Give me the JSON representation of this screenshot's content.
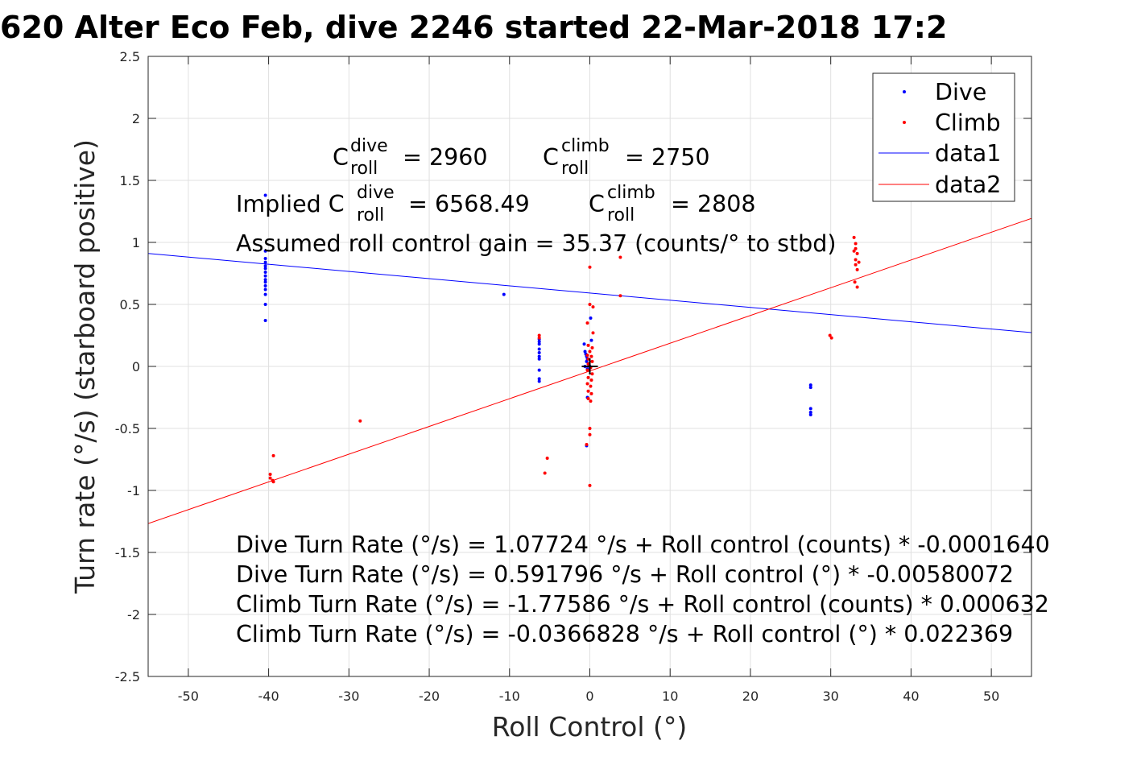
{
  "chart_data": {
    "type": "scatter",
    "title": "620 Alter Eco Feb, dive 2246 started 22-Mar-2018 17:2",
    "xlabel": "Roll Control (°)",
    "ylabel": "Turn rate (°/s) (starboard positive)",
    "xlim": [
      -55,
      55
    ],
    "ylim": [
      -2.5,
      2.5
    ],
    "xticks": [
      -50,
      -40,
      -30,
      -20,
      -10,
      0,
      10,
      20,
      30,
      40,
      50
    ],
    "xtick_labels": [
      "-50",
      "-40",
      "-30",
      "-20",
      "-10",
      "0",
      "10",
      "20",
      "30",
      "40",
      "50"
    ],
    "yticks": [
      -2.5,
      -2,
      -1.5,
      -1,
      -0.5,
      0,
      0.5,
      1,
      1.5,
      2,
      2.5
    ],
    "ytick_labels": [
      "-2.5",
      "-2",
      "-1.5",
      "-1",
      "-0.5",
      "0",
      "0.5",
      "1",
      "1.5",
      "2",
      "2.5"
    ],
    "grid": true,
    "legend_position": "top-right",
    "legend": [
      "Dive",
      "Climb",
      "data1",
      "data2"
    ],
    "colors": {
      "dive": "#0000ff",
      "climb": "#ff0000",
      "axis": "#262626",
      "grid": "#e0e0e0"
    },
    "series": [
      {
        "name": "Dive",
        "kind": "points",
        "points": [
          [
            -40.4,
            1.38
          ],
          [
            -40.4,
            0.93
          ],
          [
            -40.4,
            0.87
          ],
          [
            -40.4,
            0.84
          ],
          [
            -40.4,
            0.81
          ],
          [
            -40.4,
            0.79
          ],
          [
            -40.4,
            0.76
          ],
          [
            -40.4,
            0.73
          ],
          [
            -40.4,
            0.7
          ],
          [
            -40.4,
            0.68
          ],
          [
            -40.4,
            0.65
          ],
          [
            -40.4,
            0.62
          ],
          [
            -40.4,
            0.58
          ],
          [
            -40.4,
            0.5
          ],
          [
            -40.4,
            0.37
          ],
          [
            -10.7,
            0.58
          ],
          [
            -6.3,
            0.22
          ],
          [
            -6.3,
            0.2
          ],
          [
            -6.3,
            0.18
          ],
          [
            -6.3,
            0.14
          ],
          [
            -6.3,
            0.11
          ],
          [
            -6.3,
            0.08
          ],
          [
            -6.3,
            0.06
          ],
          [
            -6.3,
            -0.03
          ],
          [
            -6.3,
            -0.1
          ],
          [
            -6.3,
            -0.12
          ],
          [
            -0.7,
            0.18
          ],
          [
            -0.6,
            0.12
          ],
          [
            -0.5,
            0.1
          ],
          [
            -0.4,
            0.08
          ],
          [
            -0.3,
            0.06
          ],
          [
            -0.4,
            0.04
          ],
          [
            -0.2,
            0.02
          ],
          [
            -0.6,
            0.0
          ],
          [
            -0.3,
            -0.02
          ],
          [
            0.2,
            0.21
          ],
          [
            0.1,
            0.39
          ],
          [
            -0.3,
            -0.25
          ],
          [
            -0.4,
            -0.64
          ],
          [
            0.0,
            0.0
          ],
          [
            27.5,
            -0.15
          ],
          [
            27.5,
            -0.17
          ],
          [
            27.5,
            -0.34
          ],
          [
            27.5,
            -0.37
          ],
          [
            27.5,
            -0.39
          ]
        ]
      },
      {
        "name": "Climb",
        "kind": "points",
        "points": [
          [
            -39.8,
            -0.87
          ],
          [
            -39.8,
            -0.9
          ],
          [
            -39.5,
            -0.92
          ],
          [
            -39.4,
            -0.93
          ],
          [
            -39.4,
            -0.72
          ],
          [
            -28.6,
            -0.44
          ],
          [
            -6.3,
            0.25
          ],
          [
            -6.3,
            0.23
          ],
          [
            -5.3,
            -0.74
          ],
          [
            -5.6,
            -0.86
          ],
          [
            0.0,
            0.8
          ],
          [
            0.0,
            0.5
          ],
          [
            0.4,
            0.48
          ],
          [
            -0.3,
            0.35
          ],
          [
            0.4,
            0.27
          ],
          [
            -0.2,
            0.17
          ],
          [
            0.3,
            0.15
          ],
          [
            0.0,
            0.12
          ],
          [
            -0.3,
            0.09
          ],
          [
            0.2,
            0.08
          ],
          [
            -0.2,
            0.06
          ],
          [
            0.3,
            0.04
          ],
          [
            -0.2,
            0.02
          ],
          [
            0.1,
            -0.01
          ],
          [
            -0.3,
            -0.03
          ],
          [
            0.3,
            -0.06
          ],
          [
            -0.2,
            -0.09
          ],
          [
            0.2,
            -0.11
          ],
          [
            -0.3,
            -0.14
          ],
          [
            0.1,
            -0.16
          ],
          [
            -0.2,
            -0.2
          ],
          [
            0.2,
            -0.22
          ],
          [
            -0.2,
            -0.26
          ],
          [
            0.1,
            -0.28
          ],
          [
            0.0,
            -0.5
          ],
          [
            0.0,
            -0.55
          ],
          [
            -0.4,
            -0.63
          ],
          [
            0.0,
            -0.96
          ],
          [
            3.8,
            0.88
          ],
          [
            3.8,
            0.57
          ],
          [
            29.9,
            0.25
          ],
          [
            30.1,
            0.23
          ],
          [
            32.9,
            1.04
          ],
          [
            33.1,
            0.99
          ],
          [
            33.1,
            0.95
          ],
          [
            32.9,
            0.93
          ],
          [
            33.3,
            0.91
          ],
          [
            33.1,
            0.86
          ],
          [
            33.5,
            0.84
          ],
          [
            33.1,
            0.82
          ],
          [
            33.3,
            0.78
          ],
          [
            33.0,
            0.68
          ],
          [
            33.3,
            0.64
          ]
        ]
      },
      {
        "name": "data1",
        "kind": "line",
        "intercept": 0.591796,
        "slope": -0.00580072
      },
      {
        "name": "data2",
        "kind": "line",
        "intercept": -0.0366828,
        "slope": 0.022369
      }
    ],
    "cross_marker": [
      0,
      0
    ],
    "annotations": {
      "c_dive_value": "= 2960",
      "c_climb_value": "= 2750",
      "implied_prefix": "Implied C",
      "implied_dive_value": "= 6568.49",
      "implied_climb_value": "= 2808",
      "c_letter": "C",
      "sup_dive": "dive",
      "sup_climb": "climb",
      "sub_roll": "roll",
      "gain_text": "Assumed roll control gain = 35.37 (counts/° to stbd)",
      "eq_lines": [
        "Dive Turn Rate (°/s) = 1.07724 °/s + Roll control (counts) * -0.0001640",
        "Dive Turn Rate (°/s) = 0.591796 °/s + Roll control (°) * -0.00580072",
        "Climb Turn Rate (°/s) = -1.77586 °/s + Roll control (counts) * 0.000632",
        "Climb Turn Rate (°/s) = -0.0366828 °/s + Roll control (°) * 0.022369"
      ]
    }
  }
}
